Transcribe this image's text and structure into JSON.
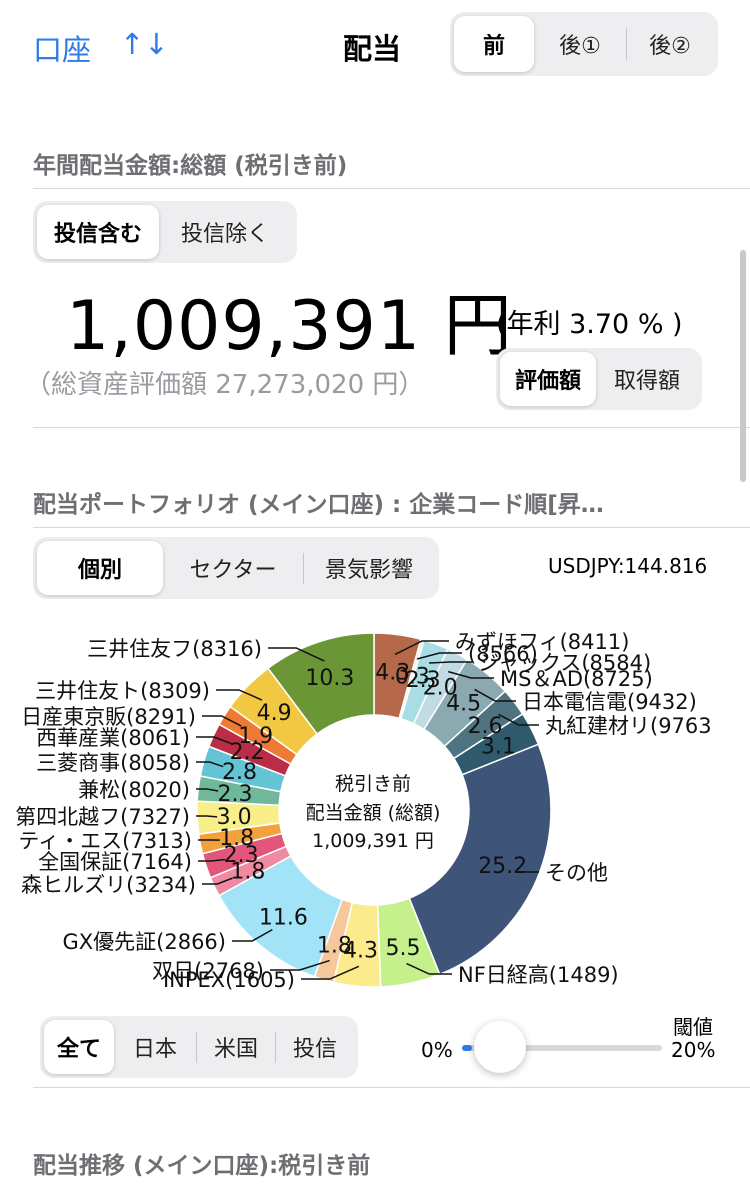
{
  "header": {
    "account_label": "口座",
    "sort_icon": "↑↓",
    "title": "配当",
    "tax_tabs": [
      "前",
      "後①",
      "後②"
    ]
  },
  "annual": {
    "title": "年間配当金額:総額 (税引き前)",
    "trust_tabs": [
      "投信含む",
      "投信除く"
    ],
    "amount": "1,009,391 円",
    "rate": "(年利 3.70 % )",
    "total_assets": "（総資産評価額 27,273,020 円）",
    "basis_tabs": [
      "評価額",
      "取得額"
    ]
  },
  "portfolio": {
    "title": "配当ポートフォリオ (メイン口座) : 企業コード順[昇…",
    "view_tabs": [
      "個別",
      "セクター",
      "景気影響"
    ],
    "fx": "USDJPY:144.816",
    "center_line1": "税引き前",
    "center_line2": "配当金額 (総額)",
    "center_line3": "1,009,391 円",
    "region_tabs": [
      "全て",
      "日本",
      "米国",
      "投信"
    ],
    "threshold_label": "閾値",
    "threshold_min": "0%",
    "threshold_max": "20%",
    "threshold_value": 0
  },
  "transition": {
    "title": "配当推移 (メイン口座):税引き前"
  },
  "colors": {
    "accent": "#2f7be9"
  },
  "chart_data": {
    "type": "pie",
    "unit": "%",
    "slices": [
      {
        "label": "みずほフィ(8411)",
        "value": 4.3,
        "color": "#b5694a"
      },
      {
        "label": "(8566)",
        "value": 0.3,
        "color": "#f3eee6"
      },
      {
        "label": "ジャックス(8584)",
        "value": 2.3,
        "color": "#a9dde6"
      },
      {
        "label": "MS＆AD(8725)",
        "value": 2.0,
        "color": "#c0dbe3"
      },
      {
        "label": "日本電信電(9432)",
        "value": 4.5,
        "color": "#8aa9b1"
      },
      {
        "label": "丸紅建材リ(9763",
        "value": 2.6,
        "color": "#4f7381"
      },
      {
        "label": "",
        "value": 3.1,
        "color": "#2f5a6e"
      },
      {
        "label": "その他",
        "value": 25.2,
        "color": "#3e5478"
      },
      {
        "label": "NF日経高(1489)",
        "value": 5.5,
        "color": "#c6f08c"
      },
      {
        "label": "INPEX(1605)",
        "value": 4.3,
        "color": "#fbeb8c"
      },
      {
        "label": "双日(2768)",
        "value": 1.8,
        "color": "#f5c79a"
      },
      {
        "label": "GX優先証(2866)",
        "value": 11.6,
        "color": "#a3e3f7"
      },
      {
        "label": "森ヒルズリ(3234)",
        "value": 1.8,
        "color": "#ef8aa3"
      },
      {
        "label": "全国保証(7164)",
        "value": 2.3,
        "color": "#e2567a"
      },
      {
        "label": "ティ・エス(7313)",
        "value": 1.8,
        "color": "#f2a13c"
      },
      {
        "label": "第四北越フ(7327)",
        "value": 3.0,
        "color": "#f8ef8a"
      },
      {
        "label": "兼松(8020)",
        "value": 2.3,
        "color": "#70b89a"
      },
      {
        "label": "三菱商事(8058)",
        "value": 2.8,
        "color": "#63c4d6"
      },
      {
        "label": "西華産業(8061)",
        "value": 2.2,
        "color": "#b92e46"
      },
      {
        "label": "日産東京販(8291)",
        "value": 1.9,
        "color": "#ee7a33"
      },
      {
        "label": "三井住友ト(8309)",
        "value": 4.9,
        "color": "#f2c741"
      },
      {
        "label": "三井住友フ(8316)",
        "value": 10.3,
        "color": "#6b9636"
      }
    ]
  }
}
